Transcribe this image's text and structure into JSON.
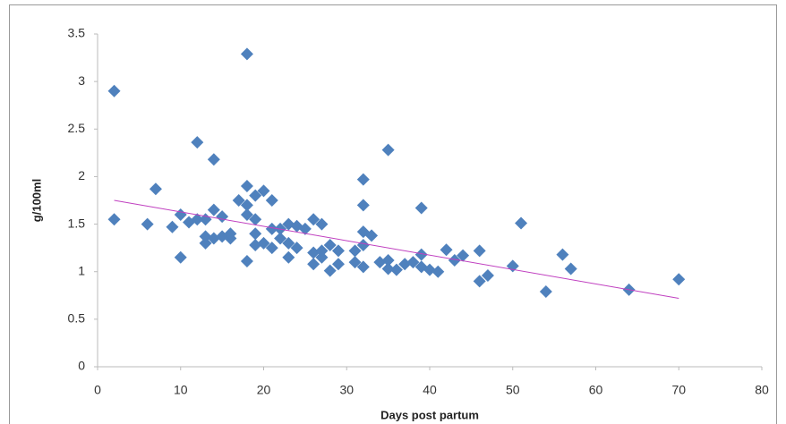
{
  "chart_data": {
    "type": "scatter",
    "x_label": "Days post partum",
    "y_label": "g/100ml",
    "xlim": [
      0,
      80
    ],
    "xticks": [
      0,
      10,
      20,
      30,
      40,
      50,
      60,
      70,
      80
    ],
    "ylim": [
      0,
      3.5
    ],
    "yticks": [
      0,
      0.5,
      1,
      1.5,
      2,
      2.5,
      3,
      3.5
    ],
    "grid": false,
    "color": "#4f81bd",
    "x": [
      2,
      2,
      6,
      7,
      9,
      10,
      10,
      11,
      12,
      12,
      13,
      13,
      13,
      14,
      14,
      14,
      15,
      15,
      16,
      16,
      17,
      18,
      18,
      18,
      18,
      18,
      19,
      19,
      19,
      19,
      20,
      20,
      21,
      21,
      21,
      22,
      22,
      23,
      23,
      23,
      24,
      24,
      25,
      26,
      26,
      26,
      27,
      27,
      27,
      28,
      28,
      29,
      29,
      31,
      31,
      32,
      32,
      32,
      32,
      32,
      33,
      34,
      35,
      35,
      35,
      36,
      37,
      38,
      39,
      39,
      39,
      40,
      41,
      42,
      43,
      44,
      46,
      46,
      47,
      50,
      51,
      54,
      56,
      57,
      64,
      70
    ],
    "values": [
      2.9,
      1.55,
      1.5,
      1.87,
      1.47,
      1.6,
      1.15,
      1.52,
      1.55,
      2.36,
      1.3,
      1.55,
      1.37,
      2.18,
      1.65,
      1.35,
      1.58,
      1.37,
      1.35,
      1.4,
      1.75,
      3.29,
      1.9,
      1.6,
      1.7,
      1.11,
      1.8,
      1.55,
      1.4,
      1.28,
      1.85,
      1.3,
      1.75,
      1.45,
      1.25,
      1.45,
      1.35,
      1.5,
      1.3,
      1.15,
      1.48,
      1.25,
      1.45,
      1.55,
      1.2,
      1.08,
      1.5,
      1.15,
      1.22,
      1.28,
      1.01,
      1.22,
      1.08,
      1.22,
      1.1,
      1.97,
      1.7,
      1.42,
      1.28,
      1.05,
      1.38,
      1.1,
      2.28,
      1.12,
      1.03,
      1.02,
      1.08,
      1.1,
      1.67,
      1.18,
      1.05,
      1.02,
      1.0,
      1.23,
      1.12,
      1.17,
      1.22,
      0.9,
      0.96,
      1.06,
      1.51,
      0.79,
      1.18,
      1.03,
      0.81,
      0.92
    ],
    "trendline": {
      "x": [
        2,
        70
      ],
      "values": [
        1.75,
        0.72
      ],
      "color": "#c040c0"
    }
  }
}
